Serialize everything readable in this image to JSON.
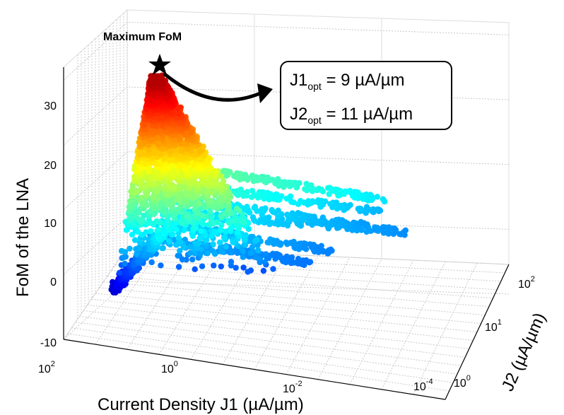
{
  "chart_data": {
    "type": "scatter",
    "projection": "3d",
    "xlabel": "Current Density J1 (µA/µm)",
    "ylabel": "J2 (µA/µm)",
    "zlabel": "FoM of the LNA",
    "x_scale": "log",
    "y_scale": "log",
    "x_ticks": [
      "10",
      "10",
      "10",
      "10"
    ],
    "x_tick_exponents": [
      "2",
      "0",
      "-2",
      "-4"
    ],
    "x_tick_values": [
      100,
      1,
      0.01,
      0.0001
    ],
    "y_ticks": [
      "10",
      "10",
      "10"
    ],
    "y_tick_exponents": [
      "0",
      "1",
      "2"
    ],
    "y_tick_values": [
      1,
      10,
      100
    ],
    "z_ticks": [
      "-10",
      "0",
      "10",
      "20",
      "30"
    ],
    "z_tick_values": [
      -10,
      0,
      10,
      20,
      30
    ],
    "zlim": [
      -10,
      30
    ],
    "grid": true,
    "colormap": "jet",
    "color_low": "#00008f",
    "color_high": "#800000",
    "maximum": {
      "label": "Maximum FoM",
      "J1": 9,
      "J2": 11,
      "FoM": 30.5
    },
    "annotation": {
      "line1_prefix": "J1",
      "line1_sub": "opt",
      "line1_value": " = 9 µA/µm",
      "line2_prefix": "J2",
      "line2_sub": "opt",
      "line2_value": " = 11 µA/µm"
    }
  }
}
